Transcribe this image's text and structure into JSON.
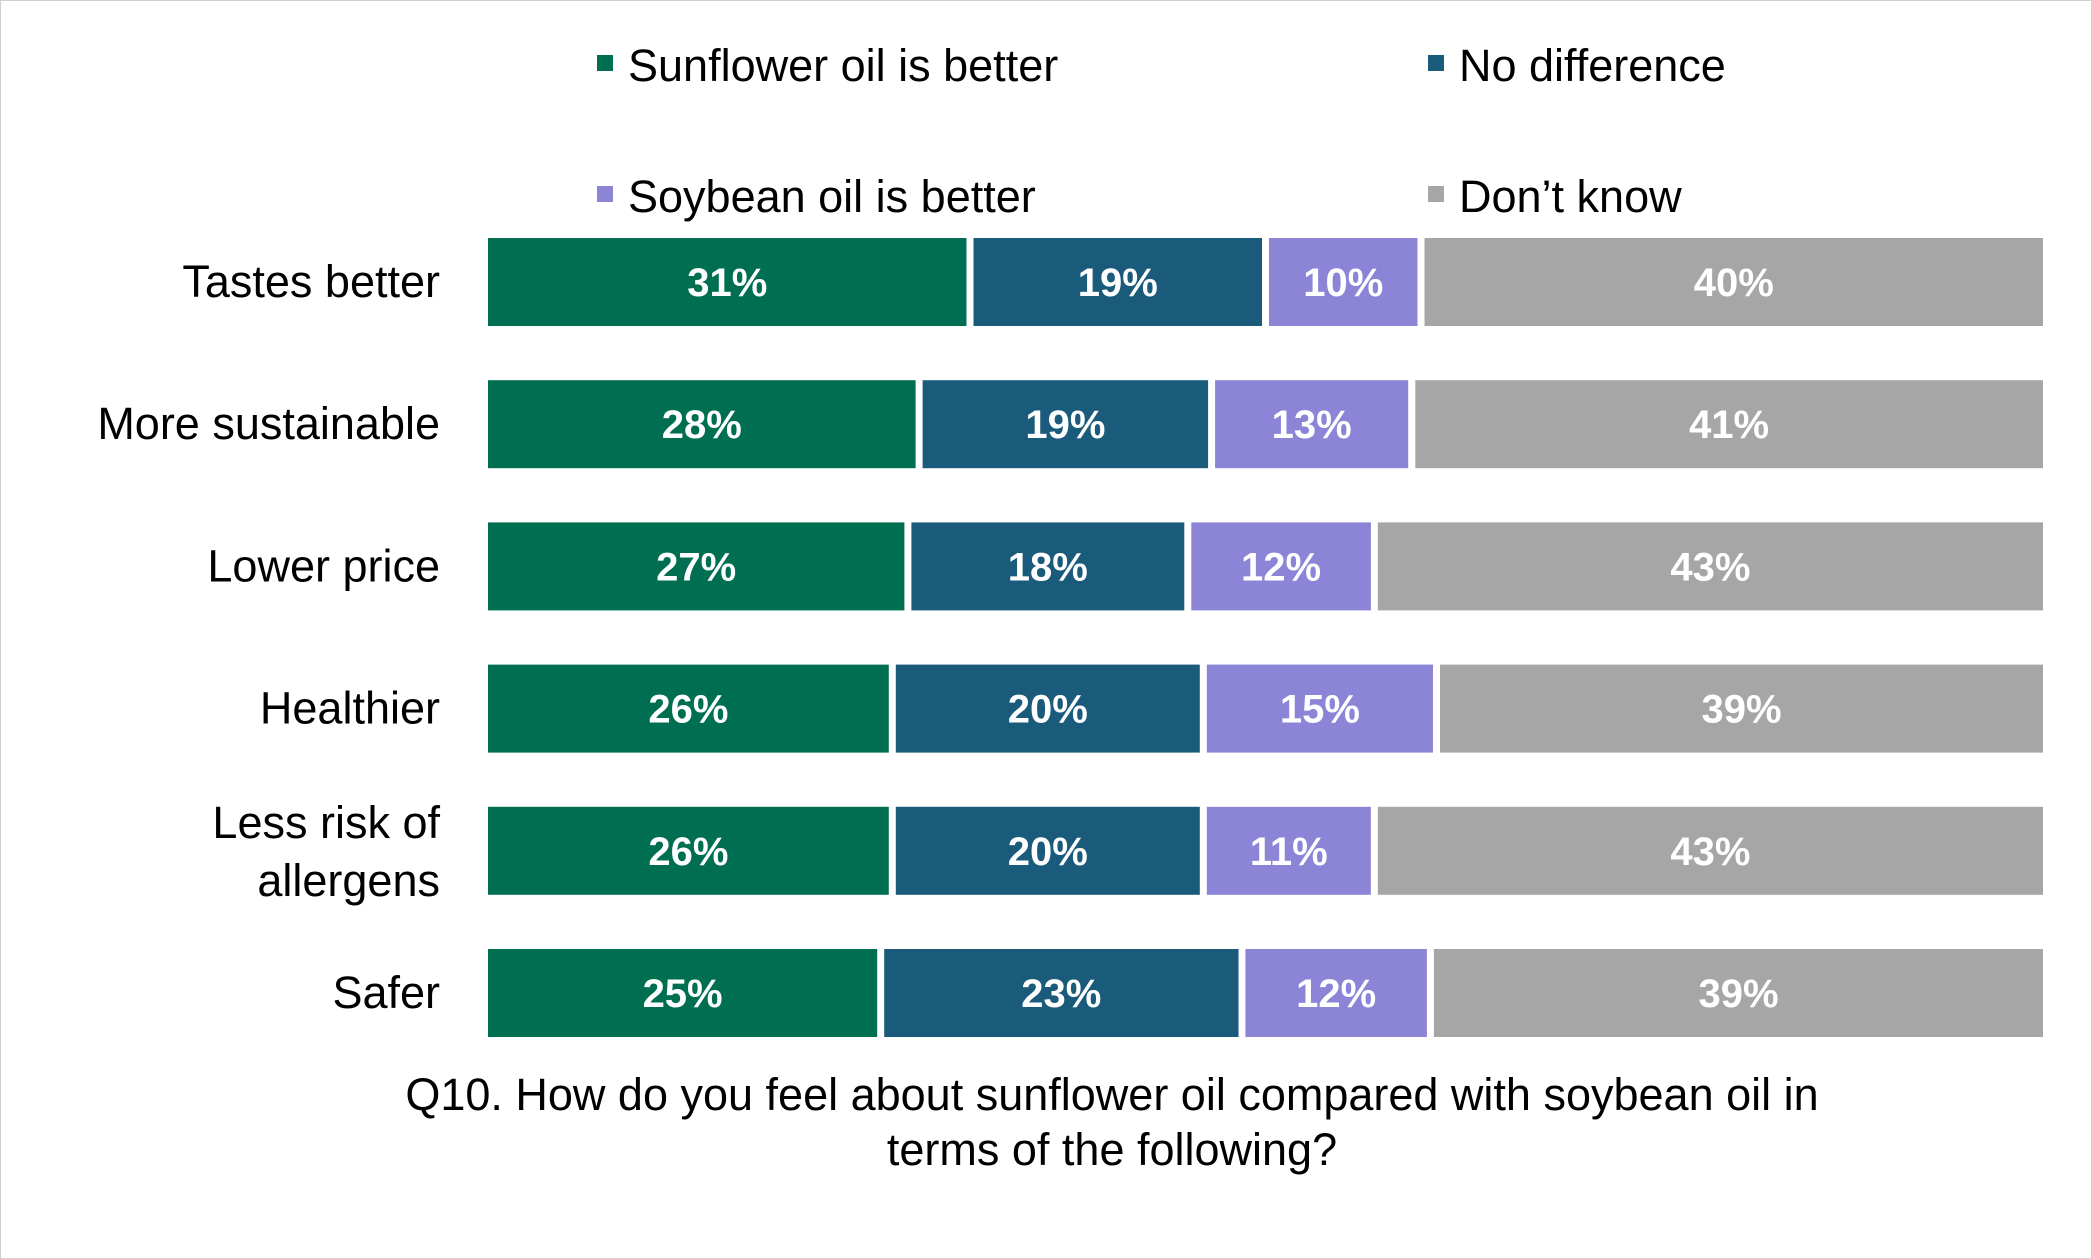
{
  "chart_data": {
    "type": "bar",
    "orientation": "horizontal",
    "stacked": "100%",
    "categories": [
      "Tastes better",
      "More sustainable",
      "Lower price",
      "Healthier",
      "Less risk of allergens",
      "Safer"
    ],
    "series": [
      {
        "name": "Sunflower oil is better",
        "color": "#006f51",
        "values": [
          31,
          28,
          27,
          26,
          26,
          25
        ],
        "labels": [
          "31%",
          "28%",
          "27%",
          "26%",
          "26%",
          "25%"
        ]
      },
      {
        "name": "No difference",
        "color": "#1a5a7a",
        "values": [
          19,
          19,
          18,
          20,
          20,
          23
        ],
        "labels": [
          "19%",
          "19%",
          "18%",
          "20%",
          "20%",
          "23%"
        ]
      },
      {
        "name": "Soybean oil is better",
        "color": "#8b84d7",
        "values": [
          10,
          13,
          12,
          15,
          11,
          12
        ],
        "labels": [
          "10%",
          "13%",
          "12%",
          "15%",
          "11%",
          "12%"
        ]
      },
      {
        "name": "Don’t know",
        "color": "#a6a6a6",
        "values": [
          40,
          41,
          43,
          39,
          43,
          39
        ],
        "labels": [
          "40%",
          "41%",
          "43%",
          "39%",
          "43%",
          "39%"
        ]
      }
    ],
    "title": "",
    "xlabel": "",
    "ylabel": "",
    "legend_position": "top",
    "grid": false,
    "caption": "Q10. How do you feel about sunflower oil compared with soybean oil in terms of the following?"
  }
}
